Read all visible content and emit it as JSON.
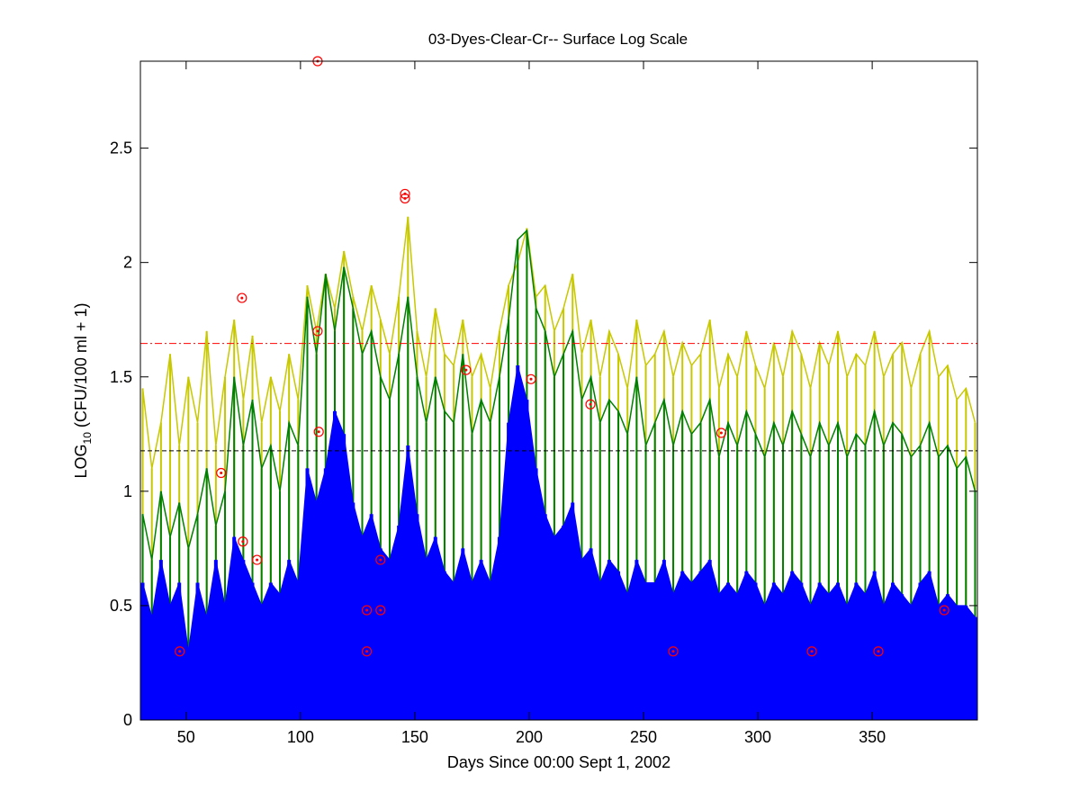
{
  "chart_data": {
    "type": "line",
    "title": "03-Dyes-Clear-Cr-- Surface Log Scale",
    "xlabel": "Days Since 00:00 Sept 1, 2002",
    "ylabel": {
      "base": "LOG",
      "sub": "10",
      "rest": " (CFU/100 ml + 1)"
    },
    "xlim": [
      30,
      396
    ],
    "ylim": [
      0,
      2.88
    ],
    "xticks": [
      50,
      100,
      150,
      200,
      250,
      300,
      350
    ],
    "yticks": [
      0,
      0.5,
      1,
      1.5,
      2,
      2.5
    ],
    "ytick_labels": [
      "0",
      "0.5",
      "1",
      "1.5",
      "2",
      "2.5"
    ],
    "grid": false,
    "x": {
      "start": 31,
      "step": 4,
      "count": 92
    },
    "series": [
      {
        "name": "yellow",
        "color": "#c8c800",
        "style": "line",
        "values": [
          1.45,
          1.1,
          1.3,
          1.6,
          1.2,
          1.5,
          1.3,
          1.7,
          1.2,
          1.5,
          1.75,
          1.4,
          1.68,
          1.3,
          1.5,
          1.35,
          1.6,
          1.4,
          1.9,
          1.7,
          1.95,
          1.8,
          2.05,
          1.85,
          1.7,
          1.9,
          1.75,
          1.6,
          1.85,
          2.2,
          1.7,
          1.5,
          1.8,
          1.6,
          1.55,
          1.75,
          1.5,
          1.6,
          1.45,
          1.7,
          1.9,
          2.0,
          2.15,
          1.85,
          1.9,
          1.7,
          1.8,
          1.95,
          1.6,
          1.75,
          1.5,
          1.7,
          1.6,
          1.45,
          1.75,
          1.55,
          1.6,
          1.7,
          1.5,
          1.65,
          1.55,
          1.6,
          1.75,
          1.45,
          1.6,
          1.5,
          1.7,
          1.55,
          1.45,
          1.65,
          1.5,
          1.7,
          1.6,
          1.45,
          1.65,
          1.55,
          1.7,
          1.5,
          1.6,
          1.55,
          1.7,
          1.5,
          1.6,
          1.65,
          1.45,
          1.6,
          1.7,
          1.5,
          1.55,
          1.4,
          1.45,
          1.3
        ]
      },
      {
        "name": "green",
        "color": "#008000",
        "style": "line",
        "values": [
          0.9,
          0.7,
          1.0,
          0.8,
          0.95,
          0.75,
          0.9,
          1.1,
          0.85,
          1.0,
          1.5,
          1.2,
          1.4,
          1.1,
          1.2,
          1.0,
          1.3,
          1.2,
          1.85,
          1.6,
          1.95,
          1.7,
          1.98,
          1.8,
          1.6,
          1.7,
          1.5,
          1.4,
          1.6,
          1.85,
          1.5,
          1.3,
          1.5,
          1.35,
          1.3,
          1.6,
          1.25,
          1.4,
          1.3,
          1.5,
          1.75,
          2.1,
          2.14,
          1.8,
          1.7,
          1.5,
          1.6,
          1.7,
          1.4,
          1.5,
          1.3,
          1.4,
          1.35,
          1.25,
          1.5,
          1.2,
          1.3,
          1.4,
          1.2,
          1.35,
          1.25,
          1.3,
          1.4,
          1.15,
          1.3,
          1.2,
          1.35,
          1.25,
          1.15,
          1.3,
          1.2,
          1.35,
          1.25,
          1.15,
          1.3,
          1.2,
          1.3,
          1.15,
          1.25,
          1.2,
          1.35,
          1.2,
          1.3,
          1.25,
          1.15,
          1.2,
          1.3,
          1.15,
          1.2,
          1.1,
          1.15,
          1.0
        ]
      },
      {
        "name": "blue",
        "color": "#0000ff",
        "style": "area",
        "values": [
          0.6,
          0.45,
          0.7,
          0.5,
          0.6,
          0.3,
          0.6,
          0.45,
          0.7,
          0.5,
          0.8,
          0.7,
          0.6,
          0.5,
          0.6,
          0.55,
          0.7,
          0.6,
          1.1,
          0.95,
          1.1,
          1.35,
          1.25,
          0.95,
          0.8,
          0.9,
          0.75,
          0.7,
          0.85,
          1.2,
          0.9,
          0.7,
          0.8,
          0.65,
          0.6,
          0.75,
          0.6,
          0.7,
          0.6,
          0.8,
          1.3,
          1.55,
          1.4,
          1.1,
          0.9,
          0.8,
          0.85,
          0.95,
          0.7,
          0.75,
          0.6,
          0.7,
          0.65,
          0.55,
          0.7,
          0.6,
          0.6,
          0.7,
          0.55,
          0.65,
          0.6,
          0.65,
          0.7,
          0.55,
          0.6,
          0.55,
          0.65,
          0.6,
          0.5,
          0.6,
          0.55,
          0.65,
          0.6,
          0.5,
          0.6,
          0.55,
          0.6,
          0.5,
          0.6,
          0.55,
          0.65,
          0.5,
          0.6,
          0.55,
          0.5,
          0.6,
          0.65,
          0.5,
          0.55,
          0.5,
          0.5,
          0.45
        ]
      }
    ],
    "reference_lines": [
      {
        "name": "upper-threshold",
        "y": 1.646,
        "color": "#ff0000",
        "style": "dash-dot"
      },
      {
        "name": "lower-threshold",
        "y": 1.177,
        "color": "#000000",
        "style": "dashed"
      }
    ],
    "markers": {
      "color": "#ff0000",
      "style": "circle-dot",
      "points": [
        [
          47.2,
          0.3
        ],
        [
          65.3,
          1.08
        ],
        [
          74.4,
          1.845
        ],
        [
          74.8,
          0.78
        ],
        [
          81,
          0.7
        ],
        [
          107.5,
          2.88
        ],
        [
          107.5,
          1.7
        ],
        [
          108,
          1.26
        ],
        [
          129,
          0.48
        ],
        [
          129,
          0.3
        ],
        [
          135,
          0.7
        ],
        [
          135,
          0.48
        ],
        [
          145.7,
          2.3
        ],
        [
          145.7,
          2.28
        ],
        [
          172.4,
          1.53
        ],
        [
          200.8,
          1.49
        ],
        [
          226.8,
          1.38
        ],
        [
          263,
          0.3
        ],
        [
          284,
          1.255
        ],
        [
          323.6,
          0.3
        ],
        [
          352.7,
          0.3
        ],
        [
          381.5,
          0.48
        ]
      ]
    }
  }
}
